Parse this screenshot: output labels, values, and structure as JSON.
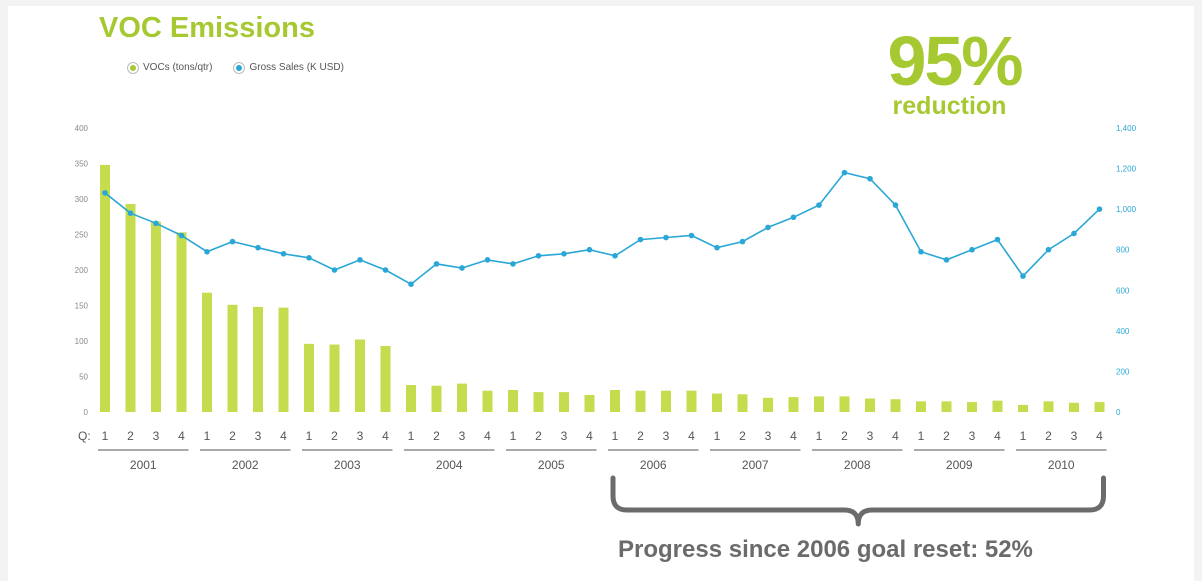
{
  "title": "VOC Emissions",
  "legend": [
    {
      "label": "VOCs (tons/qtr)",
      "color": "#a6c932"
    },
    {
      "label": "Gross Sales (K USD)",
      "color": "#2aa7d6"
    }
  ],
  "highlight": {
    "value": "95%",
    "label": "reduction"
  },
  "goal_note": "Progress since 2006 goal reset: 52%",
  "colors": {
    "bar": "#c4dc4e",
    "line": "#2aa7d6",
    "accent": "#a6c932",
    "axis_text": "#8a8a8a",
    "bracket": "#6b6b6b"
  },
  "chart_data": {
    "type": "bar+line",
    "x_prefix": "Q:",
    "years": [
      "2001",
      "2002",
      "2003",
      "2004",
      "2005",
      "2006",
      "2007",
      "2008",
      "2009",
      "2010"
    ],
    "quarter_labels": [
      "1",
      "2",
      "3",
      "4"
    ],
    "left_axis": {
      "ticks": [
        "0",
        "50",
        "100",
        "150",
        "200",
        "250",
        "300",
        "350",
        "400"
      ],
      "ylim": [
        0,
        400
      ]
    },
    "right_axis": {
      "ticks": [
        "0",
        "200",
        "400",
        "600",
        "800",
        "1,000",
        "1,200",
        "1,400"
      ],
      "ylim": [
        0,
        1400
      ]
    },
    "series": [
      {
        "name": "VOCs (tons/qtr)",
        "type": "bar",
        "axis": "left",
        "values": [
          348,
          293,
          268,
          253,
          168,
          151,
          148,
          147,
          96,
          95,
          102,
          93,
          38,
          37,
          40,
          30,
          31,
          28,
          28,
          24,
          31,
          30,
          30,
          30,
          26,
          25,
          20,
          21,
          22,
          22,
          19,
          18,
          15,
          15,
          14,
          16,
          10,
          15,
          13,
          14
        ]
      },
      {
        "name": "Gross Sales (K USD)",
        "type": "line",
        "axis": "right",
        "values": [
          1080,
          980,
          930,
          870,
          790,
          840,
          810,
          780,
          760,
          700,
          750,
          700,
          630,
          730,
          710,
          750,
          730,
          770,
          780,
          800,
          770,
          850,
          860,
          870,
          810,
          840,
          910,
          960,
          1020,
          1180,
          1150,
          1020,
          790,
          750,
          800,
          850,
          670,
          800,
          880,
          1000
        ]
      }
    ]
  }
}
